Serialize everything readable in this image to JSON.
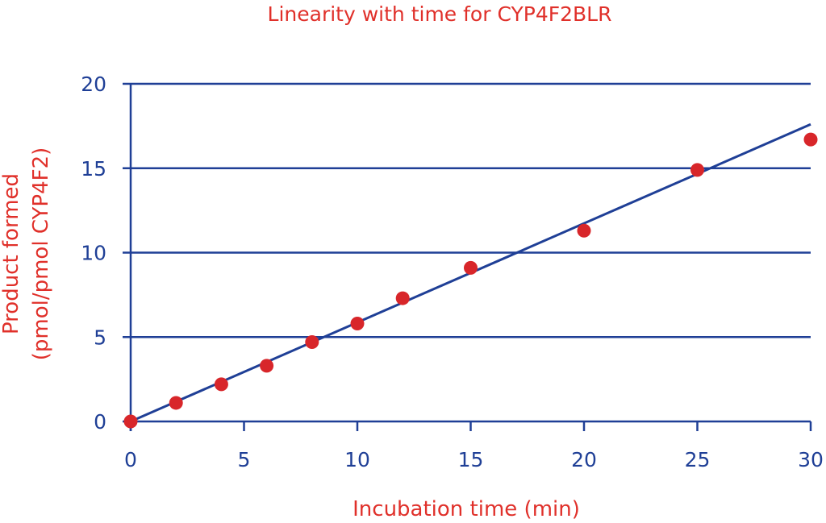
{
  "chart_data": {
    "type": "scatter",
    "title": "Linearity with time for CYP4F2BLR",
    "xlabel": "Incubation time (min)",
    "ylabel": [
      "Product formed",
      "(pmol/pmol CYP4F2)"
    ],
    "xlim": [
      0,
      30
    ],
    "ylim": [
      0,
      20
    ],
    "x_ticks": [
      "0",
      "5",
      "10",
      "15",
      "20",
      "25",
      "30"
    ],
    "y_ticks": [
      "0",
      "5",
      "10",
      "15",
      "20"
    ],
    "grid": "horizontal",
    "legend": "none",
    "series": [
      {
        "x": [
          0,
          2,
          4,
          6,
          8,
          10,
          12,
          15,
          20,
          25,
          30
        ],
        "y": [
          0,
          1.1,
          2.2,
          3.3,
          4.7,
          5.8,
          7.3,
          9.1,
          11.3,
          14.9,
          16.7
        ]
      }
    ],
    "fit_line": {
      "x": [
        0,
        30
      ],
      "y": [
        0,
        17.6
      ]
    },
    "colors": {
      "points": "#d8262a",
      "line": "#1f3f96",
      "grid": "#1f3f96",
      "text_red": "#e0302a",
      "text_blue": "#1f3f96"
    }
  }
}
